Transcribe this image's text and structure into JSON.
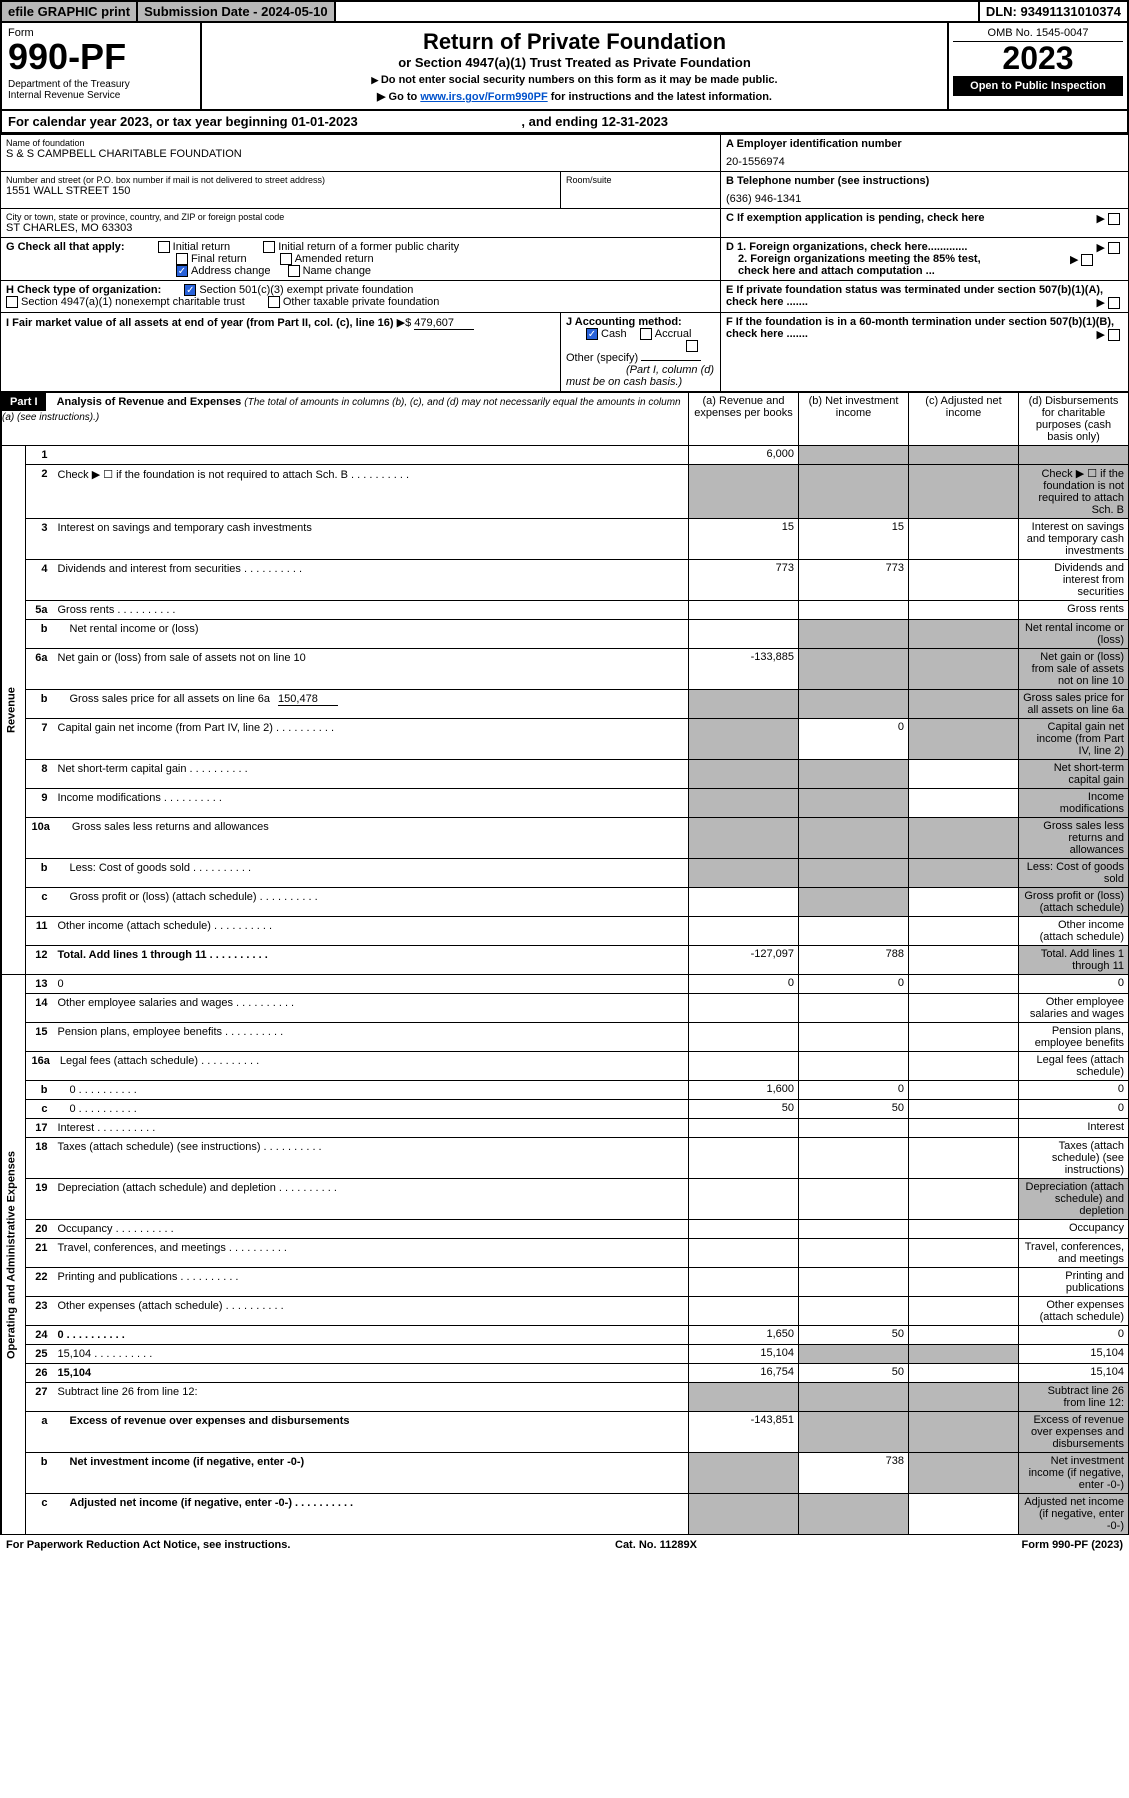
{
  "top": {
    "efile": "efile GRAPHIC print",
    "subdate_label": "Submission Date - 2024-05-10",
    "dln": "DLN: 93491131010374"
  },
  "header": {
    "form_word": "Form",
    "form_num": "990-PF",
    "dept": "Department of the Treasury\nInternal Revenue Service",
    "title": "Return of Private Foundation",
    "sub1": "or Section 4947(a)(1) Trust Treated as Private Foundation",
    "sub2a": "Do not enter social security numbers on this form as it may be made public.",
    "sub2b": "Go to ",
    "link": "www.irs.gov/Form990PF",
    "sub2c": " for instructions and the latest information.",
    "omb": "OMB No. 1545-0047",
    "year": "2023",
    "open": "Open to Public Inspection"
  },
  "cal": {
    "text": "For calendar year 2023, or tax year beginning 01-01-2023",
    "end": ", and ending 12-31-2023"
  },
  "id": {
    "name_lbl": "Name of foundation",
    "name": "S & S CAMPBELL CHARITABLE FOUNDATION",
    "addr_lbl": "Number and street (or P.O. box number if mail is not delivered to street address)",
    "addr": "1551 WALL STREET 150",
    "room_lbl": "Room/suite",
    "city_lbl": "City or town, state or province, country, and ZIP or foreign postal code",
    "city": "ST CHARLES, MO  63303",
    "a_lbl": "A Employer identification number",
    "a_val": "20-1556974",
    "b_lbl": "B Telephone number (see instructions)",
    "b_val": "(636) 946-1341",
    "c_lbl": "C If exemption application is pending, check here",
    "g_lbl": "G Check all that apply:",
    "g_initial": "Initial return",
    "g_initial_pub": "Initial return of a former public charity",
    "g_final": "Final return",
    "g_amended": "Amended return",
    "g_addr": "Address change",
    "g_name": "Name change",
    "d1": "D 1. Foreign organizations, check here.............",
    "d2": "2. Foreign organizations meeting the 85% test, check here and attach computation ...",
    "h_lbl": "H Check type of organization:",
    "h_501": "Section 501(c)(3) exempt private foundation",
    "h_4947": "Section 4947(a)(1) nonexempt charitable trust",
    "h_other": "Other taxable private foundation",
    "e_lbl": "E If private foundation status was terminated under section 507(b)(1)(A), check here .......",
    "i_lbl": "I Fair market value of all assets at end of year (from Part II, col. (c), line 16) ",
    "i_val": "479,607",
    "j_lbl": "J Accounting method:",
    "j_cash": "Cash",
    "j_accrual": "Accrual",
    "j_other": "Other (specify)",
    "j_note": "(Part I, column (d) must be on cash basis.)",
    "f_lbl": "F If the foundation is in a 60-month termination under section 507(b)(1)(B), check here ......."
  },
  "part1": {
    "label": "Part I",
    "title": "Analysis of Revenue and Expenses",
    "note": "(The total of amounts in columns (b), (c), and (d) may not necessarily equal the amounts in column (a) (see instructions).)",
    "col_a": "(a) Revenue and expenses per books",
    "col_b": "(b) Net investment income",
    "col_c": "(c) Adjusted net income",
    "col_d": "(d) Disbursements for charitable purposes (cash basis only)",
    "rev_label": "Revenue",
    "exp_label": "Operating and Administrative Expenses"
  },
  "rows": [
    {
      "n": "1",
      "d": "",
      "a": "6,000",
      "b": "",
      "c": "",
      "sb": true,
      "sc": true,
      "sd": true
    },
    {
      "n": "2",
      "d": "Check ▶ ☐ if the foundation is not required to attach Sch. B",
      "sb": true,
      "sc": true,
      "sd": true,
      "sa": true,
      "dots": true
    },
    {
      "n": "3",
      "d": "Interest on savings and temporary cash investments",
      "a": "15",
      "b": "15"
    },
    {
      "n": "4",
      "d": "Dividends and interest from securities",
      "a": "773",
      "b": "773",
      "dots": true
    },
    {
      "n": "5a",
      "d": "Gross rents",
      "dots": true
    },
    {
      "n": "b",
      "d": "Net rental income or (loss)",
      "ind": true,
      "sb": true,
      "sc": true,
      "sd": true
    },
    {
      "n": "6a",
      "d": "Net gain or (loss) from sale of assets not on line 10",
      "a": "-133,885",
      "sb": true,
      "sc": true,
      "sd": true
    },
    {
      "n": "b",
      "d": "Gross sales price for all assets on line 6a",
      "ind": true,
      "extra": "150,478",
      "sa": true,
      "sb": true,
      "sc": true,
      "sd": true
    },
    {
      "n": "7",
      "d": "Capital gain net income (from Part IV, line 2)",
      "b": "0",
      "dots": true,
      "sa": true,
      "sc": true,
      "sd": true
    },
    {
      "n": "8",
      "d": "Net short-term capital gain",
      "dots": true,
      "sa": true,
      "sb": true,
      "sd": true
    },
    {
      "n": "9",
      "d": "Income modifications",
      "dots": true,
      "sa": true,
      "sb": true,
      "sd": true
    },
    {
      "n": "10a",
      "d": "Gross sales less returns and allowances",
      "ind": true,
      "sa": true,
      "sb": true,
      "sc": true,
      "sd": true
    },
    {
      "n": "b",
      "d": "Less: Cost of goods sold",
      "ind": true,
      "dots": true,
      "sa": true,
      "sb": true,
      "sc": true,
      "sd": true
    },
    {
      "n": "c",
      "d": "Gross profit or (loss) (attach schedule)",
      "ind": true,
      "dots": true,
      "sb": true,
      "sd": true
    },
    {
      "n": "11",
      "d": "Other income (attach schedule)",
      "dots": true
    },
    {
      "n": "12",
      "d": "Total. Add lines 1 through 11",
      "a": "-127,097",
      "b": "788",
      "bold": true,
      "dots": true,
      "sd": true
    }
  ],
  "exp_rows": [
    {
      "n": "13",
      "d": "0",
      "a": "0",
      "b": "0"
    },
    {
      "n": "14",
      "d": "Other employee salaries and wages",
      "dots": true
    },
    {
      "n": "15",
      "d": "Pension plans, employee benefits",
      "dots": true
    },
    {
      "n": "16a",
      "d": "Legal fees (attach schedule)",
      "dots": true
    },
    {
      "n": "b",
      "d": "0",
      "ind": true,
      "a": "1,600",
      "b": "0",
      "dots": true
    },
    {
      "n": "c",
      "d": "0",
      "ind": true,
      "a": "50",
      "b": "50",
      "dots": true
    },
    {
      "n": "17",
      "d": "Interest",
      "dots": true
    },
    {
      "n": "18",
      "d": "Taxes (attach schedule) (see instructions)",
      "dots": true
    },
    {
      "n": "19",
      "d": "Depreciation (attach schedule) and depletion",
      "dots": true,
      "sd": true
    },
    {
      "n": "20",
      "d": "Occupancy",
      "dots": true
    },
    {
      "n": "21",
      "d": "Travel, conferences, and meetings",
      "dots": true
    },
    {
      "n": "22",
      "d": "Printing and publications",
      "dots": true
    },
    {
      "n": "23",
      "d": "Other expenses (attach schedule)",
      "dots": true
    },
    {
      "n": "24",
      "d": "0",
      "a": "1,650",
      "b": "50",
      "bold": true,
      "dots": true
    },
    {
      "n": "25",
      "d": "15,104",
      "a": "15,104",
      "dots": true,
      "sb": true,
      "sc": true
    },
    {
      "n": "26",
      "d": "15,104",
      "a": "16,754",
      "b": "50",
      "bold": true
    },
    {
      "n": "27",
      "d": "Subtract line 26 from line 12:",
      "sa": true,
      "sb": true,
      "sc": true,
      "sd": true
    },
    {
      "n": "a",
      "d": "Excess of revenue over expenses and disbursements",
      "ind": true,
      "a": "-143,851",
      "bold": true,
      "sb": true,
      "sc": true,
      "sd": true
    },
    {
      "n": "b",
      "d": "Net investment income (if negative, enter -0-)",
      "ind": true,
      "b": "738",
      "bold": true,
      "sa": true,
      "sc": true,
      "sd": true
    },
    {
      "n": "c",
      "d": "Adjusted net income (if negative, enter -0-)",
      "ind": true,
      "bold": true,
      "dots": true,
      "sa": true,
      "sb": true,
      "sd": true
    }
  ],
  "footer": {
    "pra": "For Paperwork Reduction Act Notice, see instructions.",
    "cat": "Cat. No. 11289X",
    "form": "Form 990-PF (2023)"
  }
}
